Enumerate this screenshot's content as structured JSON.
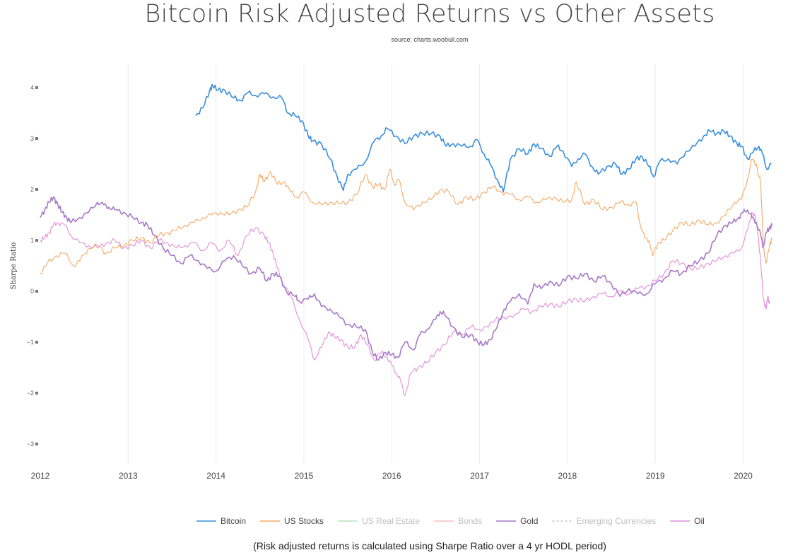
{
  "header": {
    "title": "Bitcoin Risk Adjusted Returns vs Other Assets",
    "subtitle": "source: charts.woobull.com"
  },
  "footer": {
    "note": "(Risk adjusted returns is calculated using Sharpe Ratio over a 4 yr HODL period)"
  },
  "chart_data": {
    "type": "line",
    "title": "Bitcoin Risk Adjusted Returns vs Other Assets",
    "subtitle": "source: charts.woobull.com",
    "xlabel": "",
    "ylabel": "Sharpe Ratio",
    "xlim": [
      2012.0,
      2020.35
    ],
    "ylim": [
      -3.35,
      4.45
    ],
    "x_ticks": [
      "2012",
      "2013",
      "2014",
      "2015",
      "2016",
      "2017",
      "2018",
      "2019",
      "2020"
    ],
    "y_ticks": [
      4,
      3,
      2,
      1,
      0,
      -1,
      -2,
      -3
    ],
    "grid": "vertical",
    "legend": "bottom",
    "series": [
      {
        "name": "Bitcoin",
        "color": "#3a8fdd",
        "dash": false,
        "visible": true,
        "x": [
          2013.77,
          2013.85,
          2013.93,
          2013.96,
          2014.02,
          2014.1,
          2014.2,
          2014.28,
          2014.36,
          2014.45,
          2014.55,
          2014.65,
          2014.75,
          2014.82,
          2014.9,
          2014.98,
          2015.05,
          2015.1,
          2015.2,
          2015.3,
          2015.38,
          2015.45,
          2015.5,
          2015.6,
          2015.7,
          2015.8,
          2015.88,
          2015.95,
          2016.05,
          2016.15,
          2016.25,
          2016.35,
          2016.45,
          2016.55,
          2016.62,
          2016.7,
          2016.8,
          2016.9,
          2016.97,
          2017.05,
          2017.12,
          2017.2,
          2017.27,
          2017.35,
          2017.45,
          2017.55,
          2017.62,
          2017.7,
          2017.8,
          2017.88,
          2017.95,
          2018.05,
          2018.12,
          2018.2,
          2018.28,
          2018.35,
          2018.45,
          2018.55,
          2018.62,
          2018.7,
          2018.78,
          2018.85,
          2018.93,
          2018.98,
          2019.05,
          2019.15,
          2019.25,
          2019.35,
          2019.45,
          2019.55,
          2019.62,
          2019.7,
          2019.78,
          2019.85,
          2019.93,
          2019.98,
          2020.05,
          2020.12,
          2020.18,
          2020.22,
          2020.27,
          2020.32
        ],
        "y": [
          3.45,
          3.6,
          3.95,
          4.05,
          3.95,
          3.95,
          3.8,
          3.75,
          3.9,
          3.85,
          3.88,
          3.82,
          3.8,
          3.5,
          3.45,
          3.35,
          3.05,
          2.95,
          2.9,
          2.6,
          2.25,
          1.98,
          2.3,
          2.4,
          2.55,
          2.95,
          3.05,
          3.2,
          3.05,
          2.9,
          3.05,
          3.1,
          3.1,
          3.05,
          2.85,
          2.9,
          2.85,
          2.85,
          2.98,
          2.7,
          2.5,
          2.2,
          1.95,
          2.6,
          2.8,
          2.7,
          2.9,
          2.8,
          2.65,
          2.85,
          2.75,
          2.45,
          2.6,
          2.7,
          2.45,
          2.3,
          2.45,
          2.5,
          2.3,
          2.4,
          2.6,
          2.65,
          2.45,
          2.25,
          2.55,
          2.6,
          2.5,
          2.75,
          2.85,
          3.05,
          3.15,
          3.1,
          3.15,
          3.05,
          2.9,
          2.85,
          2.6,
          2.75,
          2.85,
          2.7,
          2.4,
          2.5
        ]
      },
      {
        "name": "US Stocks",
        "color": "#f5a964",
        "dash": false,
        "visible": true,
        "x": [
          2012.0,
          2012.08,
          2012.18,
          2012.28,
          2012.38,
          2012.45,
          2012.55,
          2012.65,
          2012.75,
          2012.85,
          2012.95,
          2013.05,
          2013.15,
          2013.25,
          2013.35,
          2013.45,
          2013.55,
          2013.65,
          2013.75,
          2013.85,
          2013.95,
          2014.05,
          2014.15,
          2014.25,
          2014.35,
          2014.45,
          2014.5,
          2014.55,
          2014.62,
          2014.7,
          2014.78,
          2014.85,
          2014.92,
          2015.0,
          2015.1,
          2015.2,
          2015.3,
          2015.4,
          2015.5,
          2015.6,
          2015.7,
          2015.78,
          2015.85,
          2015.92,
          2015.98,
          2016.03,
          2016.08,
          2016.15,
          2016.25,
          2016.35,
          2016.45,
          2016.55,
          2016.65,
          2016.75,
          2016.85,
          2016.95,
          2017.05,
          2017.15,
          2017.25,
          2017.35,
          2017.45,
          2017.55,
          2017.65,
          2017.75,
          2017.85,
          2017.95,
          2018.05,
          2018.1,
          2018.2,
          2018.3,
          2018.4,
          2018.5,
          2018.6,
          2018.7,
          2018.78,
          2018.83,
          2018.88,
          2018.93,
          2018.97,
          2019.03,
          2019.1,
          2019.2,
          2019.3,
          2019.4,
          2019.5,
          2019.6,
          2019.7,
          2019.8,
          2019.9,
          2019.98,
          2020.05,
          2020.1,
          2020.15,
          2020.2,
          2020.23,
          2020.26,
          2020.3,
          2020.33
        ],
        "y": [
          0.35,
          0.55,
          0.7,
          0.75,
          0.5,
          0.6,
          0.85,
          0.9,
          0.75,
          0.85,
          0.9,
          1.0,
          1.05,
          0.95,
          1.1,
          1.15,
          1.2,
          1.3,
          1.35,
          1.45,
          1.5,
          1.55,
          1.5,
          1.6,
          1.65,
          1.95,
          2.3,
          2.15,
          2.35,
          2.1,
          2.15,
          1.95,
          1.85,
          1.95,
          1.75,
          1.7,
          1.75,
          1.72,
          1.75,
          1.9,
          2.3,
          2.05,
          2.1,
          2.0,
          2.4,
          2.1,
          2.2,
          1.75,
          1.6,
          1.75,
          1.8,
          2.0,
          1.95,
          1.7,
          1.85,
          1.8,
          1.95,
          2.05,
          1.95,
          1.9,
          1.8,
          1.85,
          1.75,
          1.8,
          1.85,
          1.75,
          1.8,
          2.15,
          1.7,
          1.8,
          1.6,
          1.65,
          1.75,
          1.7,
          1.75,
          1.3,
          1.05,
          1.0,
          0.7,
          0.95,
          1.0,
          1.2,
          1.35,
          1.3,
          1.4,
          1.3,
          1.35,
          1.5,
          1.75,
          1.8,
          2.2,
          2.6,
          2.5,
          2.1,
          0.9,
          0.55,
          0.9,
          1.05
        ]
      },
      {
        "name": "US Real Estate",
        "color": "#9ad49b",
        "dash": false,
        "visible": false,
        "x": [],
        "y": []
      },
      {
        "name": "Bonds",
        "color": "#f2a3a6",
        "dash": false,
        "visible": false,
        "x": [],
        "y": []
      },
      {
        "name": "Gold",
        "color": "#a879c7",
        "dash": false,
        "visible": true,
        "x": [
          2012.0,
          2012.05,
          2012.1,
          2012.15,
          2012.2,
          2012.25,
          2012.3,
          2012.35,
          2012.45,
          2012.55,
          2012.65,
          2012.72,
          2012.78,
          2012.85,
          2012.95,
          2013.05,
          2013.15,
          2013.22,
          2013.3,
          2013.4,
          2013.5,
          2013.6,
          2013.7,
          2013.8,
          2013.9,
          2014.0,
          2014.1,
          2014.2,
          2014.3,
          2014.4,
          2014.5,
          2014.58,
          2014.65,
          2014.72,
          2014.8,
          2014.9,
          2014.95,
          2015.05,
          2015.12,
          2015.2,
          2015.3,
          2015.4,
          2015.5,
          2015.6,
          2015.7,
          2015.78,
          2015.85,
          2015.93,
          2016.0,
          2016.07,
          2016.15,
          2016.25,
          2016.32,
          2016.4,
          2016.5,
          2016.55,
          2016.6,
          2016.7,
          2016.8,
          2016.9,
          2016.98,
          2017.05,
          2017.12,
          2017.2,
          2017.28,
          2017.35,
          2017.45,
          2017.55,
          2017.62,
          2017.7,
          2017.8,
          2017.9,
          2018.0,
          2018.1,
          2018.2,
          2018.3,
          2018.4,
          2018.5,
          2018.6,
          2018.7,
          2018.8,
          2018.9,
          2019.0,
          2019.1,
          2019.2,
          2019.3,
          2019.4,
          2019.5,
          2019.6,
          2019.7,
          2019.8,
          2019.88,
          2019.95,
          2020.0,
          2020.05,
          2020.1,
          2020.15,
          2020.2,
          2020.23,
          2020.26,
          2020.3,
          2020.33
        ],
        "y": [
          1.45,
          1.6,
          1.75,
          1.85,
          1.7,
          1.55,
          1.45,
          1.35,
          1.45,
          1.55,
          1.75,
          1.7,
          1.65,
          1.6,
          1.55,
          1.45,
          1.35,
          1.3,
          1.1,
          0.85,
          0.7,
          0.55,
          0.7,
          0.6,
          0.45,
          0.4,
          0.6,
          0.7,
          0.5,
          0.35,
          0.45,
          0.2,
          0.35,
          0.3,
          0.0,
          -0.1,
          -0.2,
          -0.15,
          -0.05,
          -0.3,
          -0.35,
          -0.5,
          -0.65,
          -0.7,
          -0.75,
          -1.2,
          -1.35,
          -1.2,
          -1.25,
          -1.3,
          -1.0,
          -1.15,
          -0.85,
          -0.75,
          -0.55,
          -0.4,
          -0.45,
          -0.7,
          -0.9,
          -0.85,
          -1.0,
          -1.05,
          -0.95,
          -0.7,
          -0.35,
          -0.2,
          -0.05,
          -0.25,
          0.15,
          0.05,
          0.2,
          0.1,
          0.3,
          0.25,
          0.35,
          0.2,
          0.3,
          0.15,
          -0.1,
          0.05,
          -0.05,
          -0.05,
          0.15,
          0.25,
          0.4,
          0.35,
          0.5,
          0.6,
          0.75,
          1.1,
          1.3,
          1.35,
          1.45,
          1.55,
          1.6,
          1.45,
          1.35,
          1.1,
          0.85,
          1.15,
          1.25,
          1.3
        ]
      },
      {
        "name": "Emerging Currencies",
        "color": "#aaaaaa",
        "dash": true,
        "visible": false,
        "x": [],
        "y": []
      },
      {
        "name": "Oil",
        "color": "#e38ed8",
        "dash": false,
        "visible": true,
        "x": [
          2012.0,
          2012.05,
          2012.1,
          2012.15,
          2012.2,
          2012.28,
          2012.35,
          2012.45,
          2012.55,
          2012.65,
          2012.75,
          2012.85,
          2012.95,
          2013.05,
          2013.15,
          2013.25,
          2013.35,
          2013.45,
          2013.55,
          2013.65,
          2013.75,
          2013.85,
          2013.95,
          2014.05,
          2014.15,
          2014.25,
          2014.35,
          2014.45,
          2014.55,
          2014.6,
          2014.65,
          2014.7,
          2014.75,
          2014.85,
          2014.95,
          2015.05,
          2015.12,
          2015.2,
          2015.28,
          2015.35,
          2015.42,
          2015.5,
          2015.58,
          2015.65,
          2015.72,
          2015.8,
          2015.88,
          2015.95,
          2016.0,
          2016.05,
          2016.1,
          2016.15,
          2016.22,
          2016.3,
          2016.4,
          2016.5,
          2016.6,
          2016.7,
          2016.8,
          2016.9,
          2017.0,
          2017.1,
          2017.2,
          2017.3,
          2017.4,
          2017.5,
          2017.6,
          2017.7,
          2017.8,
          2017.9,
          2018.0,
          2018.1,
          2018.2,
          2018.3,
          2018.4,
          2018.5,
          2018.6,
          2018.7,
          2018.8,
          2018.9,
          2019.0,
          2019.1,
          2019.2,
          2019.3,
          2019.4,
          2019.5,
          2019.6,
          2019.7,
          2019.8,
          2019.9,
          2019.98,
          2020.05,
          2020.1,
          2020.14,
          2020.17,
          2020.2,
          2020.23,
          2020.26,
          2020.28,
          2020.3
        ],
        "y": [
          1.0,
          1.05,
          1.15,
          1.3,
          1.35,
          1.3,
          1.1,
          0.95,
          0.9,
          0.85,
          0.95,
          1.0,
          0.85,
          0.9,
          1.0,
          0.85,
          1.0,
          0.95,
          0.85,
          0.9,
          0.95,
          0.8,
          0.95,
          0.8,
          1.0,
          0.7,
          1.1,
          1.25,
          1.1,
          0.95,
          0.75,
          0.45,
          0.2,
          -0.1,
          -0.55,
          -0.95,
          -1.35,
          -1.1,
          -0.8,
          -0.9,
          -0.95,
          -1.1,
          -1.1,
          -0.85,
          -1.05,
          -1.35,
          -1.2,
          -1.3,
          -1.45,
          -1.6,
          -1.75,
          -2.05,
          -1.6,
          -1.5,
          -1.4,
          -1.2,
          -1.05,
          -0.8,
          -0.85,
          -0.7,
          -0.75,
          -0.7,
          -0.5,
          -0.55,
          -0.45,
          -0.35,
          -0.4,
          -0.3,
          -0.25,
          -0.3,
          -0.2,
          -0.15,
          -0.2,
          -0.1,
          -0.05,
          -0.1,
          0.0,
          -0.05,
          0.05,
          0.1,
          0.2,
          0.35,
          0.6,
          0.55,
          0.45,
          0.45,
          0.55,
          0.6,
          0.7,
          0.75,
          0.85,
          1.2,
          1.55,
          1.45,
          1.1,
          0.55,
          -0.15,
          -0.35,
          -0.1,
          -0.25
        ]
      }
    ]
  }
}
